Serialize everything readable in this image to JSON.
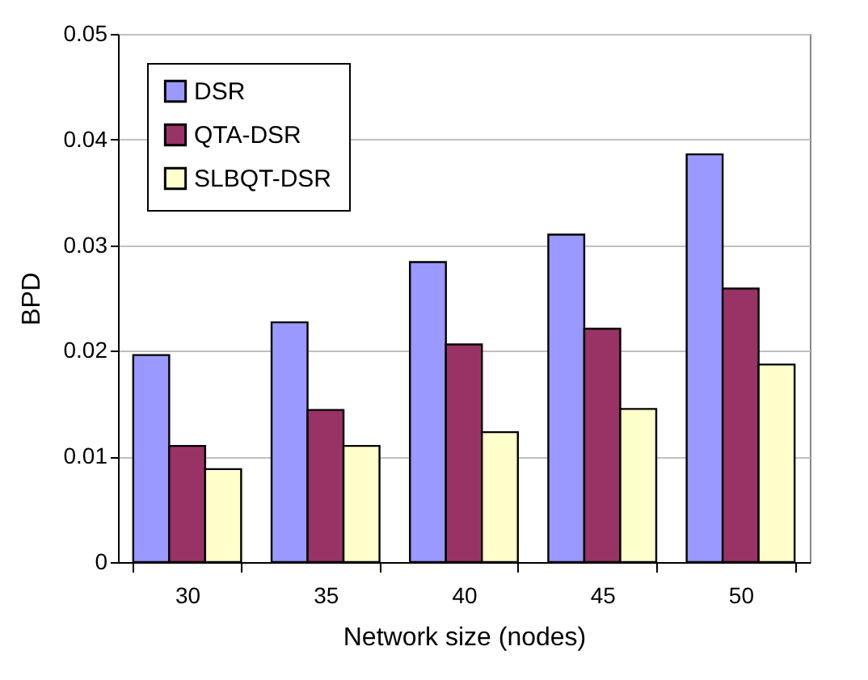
{
  "chart_data": {
    "type": "bar",
    "xlabel": "Network size (nodes)",
    "ylabel": "BPD",
    "categories": [
      "30",
      "35",
      "40",
      "45",
      "50"
    ],
    "series": [
      {
        "name": "DSR",
        "color": "#9999ff",
        "values": [
          0.0196,
          0.0227,
          0.0284,
          0.031,
          0.0386
        ]
      },
      {
        "name": "QTA-DSR",
        "color": "#993366",
        "values": [
          0.011,
          0.0144,
          0.0206,
          0.0221,
          0.0259
        ]
      },
      {
        "name": "SLBQT-DSR",
        "color": "#ffffcc",
        "values": [
          0.0088,
          0.011,
          0.0123,
          0.0145,
          0.0187
        ]
      }
    ],
    "ylim": [
      0,
      0.05
    ],
    "yticks": [
      0,
      0.01,
      0.02,
      0.03,
      0.04,
      0.05
    ],
    "grid": "y",
    "legend": "top left"
  }
}
